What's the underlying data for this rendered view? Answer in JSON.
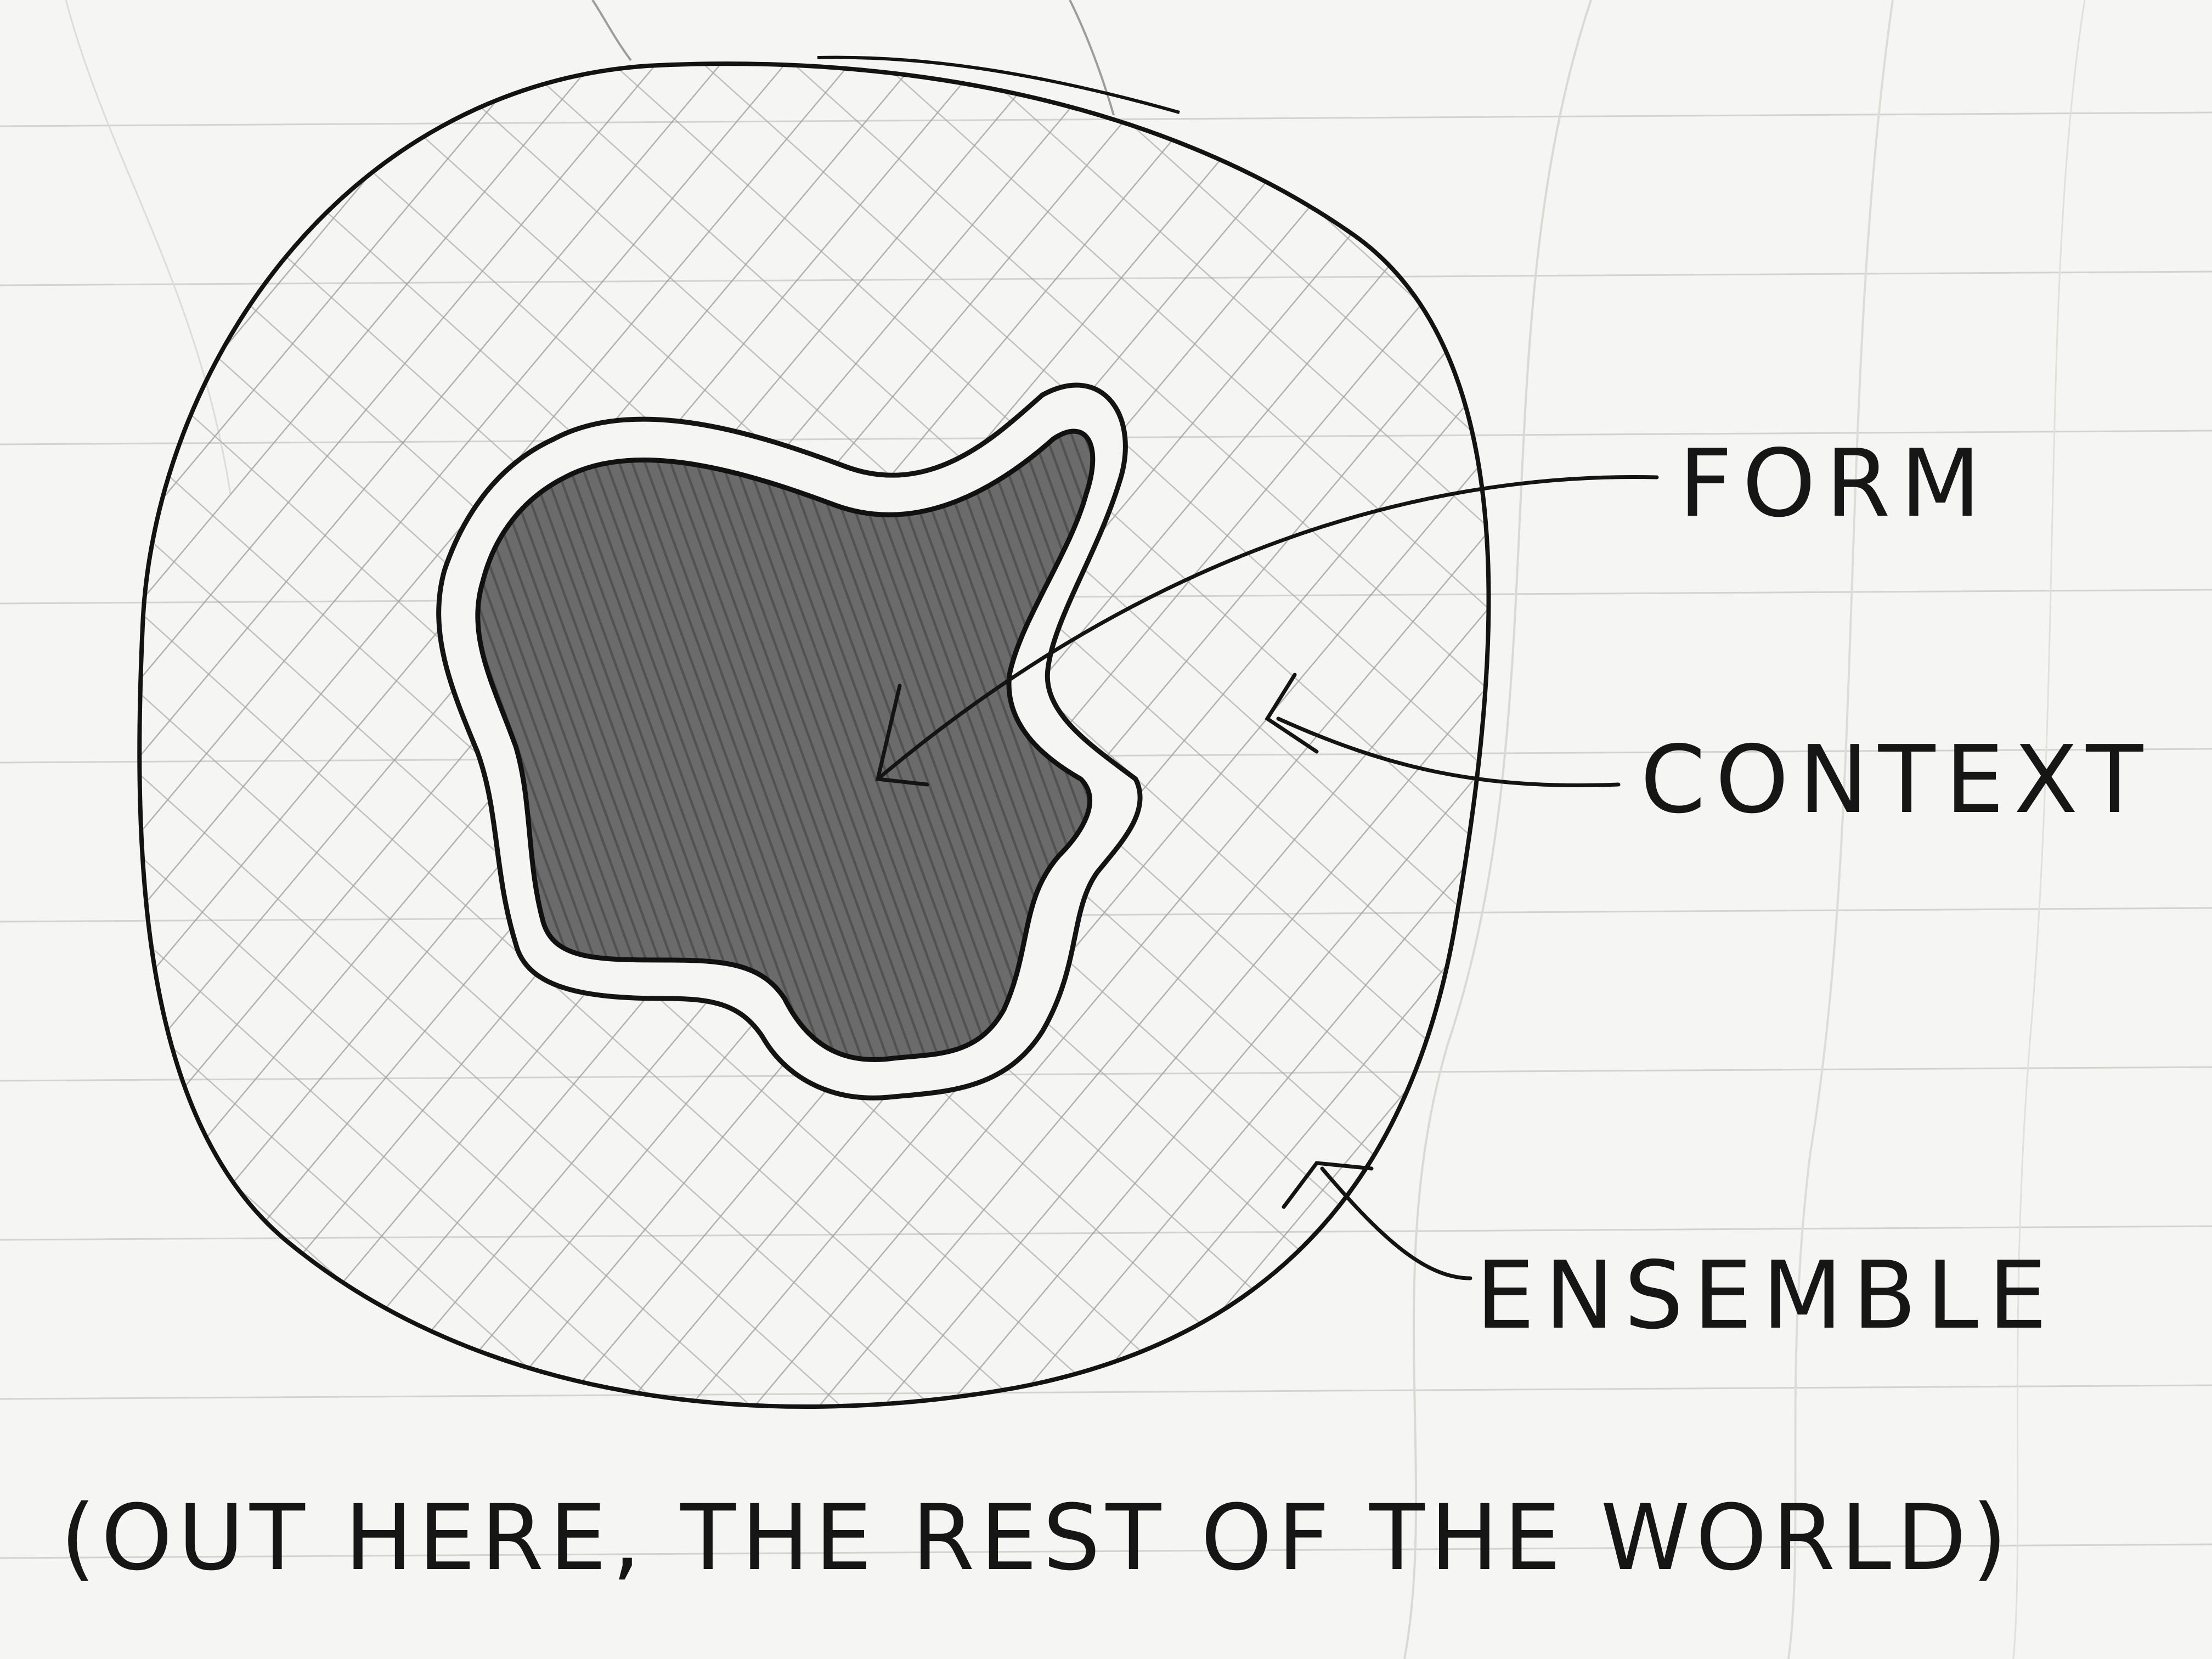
{
  "labels": {
    "form": "FORM",
    "context": "CONTEXT",
    "ensemble": "ENSEMBLE",
    "footer": "(OUT HERE, THE REST OF THE WORLD)"
  },
  "colors": {
    "paper": "#f5f5f3",
    "ruled_line": "#c9c9c6",
    "ink": "#161616",
    "hatch": "#8f8f8f",
    "form_fill": "#5e5e5e"
  }
}
